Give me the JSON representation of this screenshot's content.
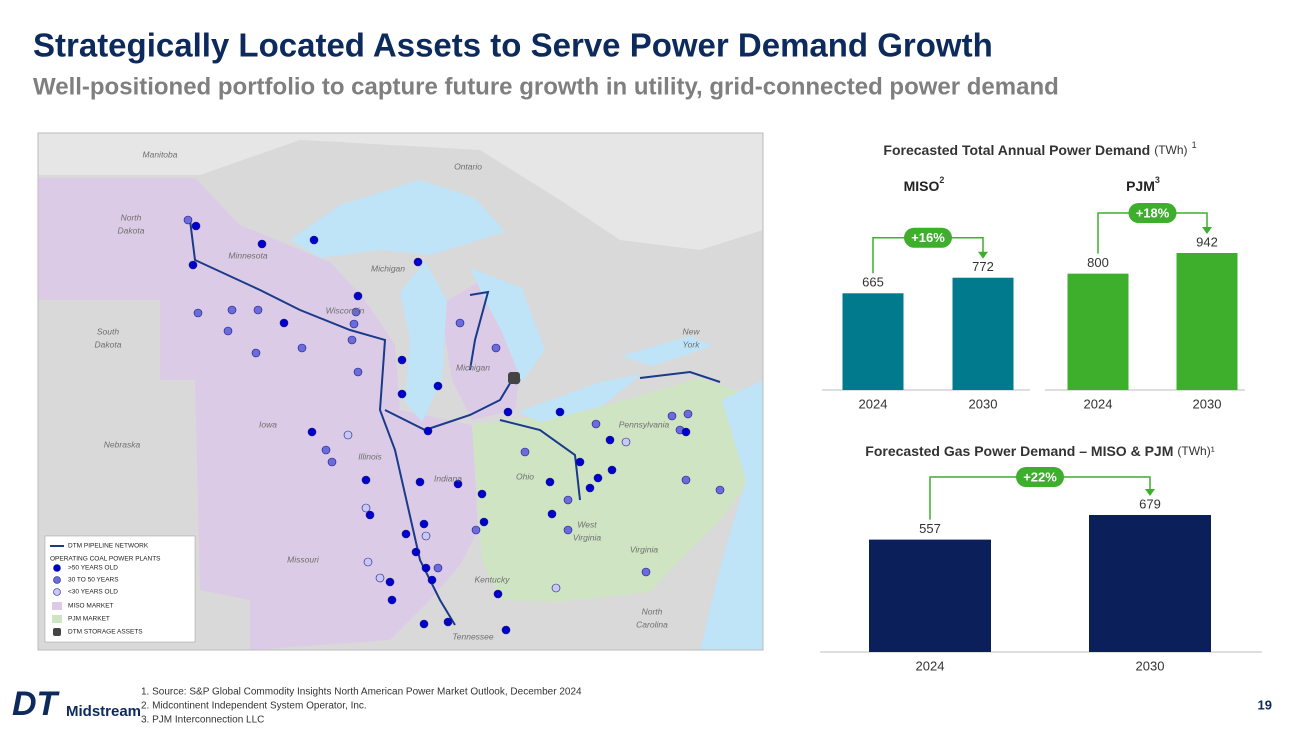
{
  "header": {
    "title": "Strategically Located Assets to Serve Power Demand Growth",
    "subtitle": "Well-positioned portfolio to capture future growth in utility, grid-connected power demand"
  },
  "map": {
    "labels": [
      [
        "Manitoba"
      ],
      [
        "Ontario"
      ],
      [
        "North",
        "Dakota"
      ],
      [
        "Minnesota"
      ],
      [
        "Michigan"
      ],
      [
        "Wisconsin"
      ],
      [
        "South",
        "Dakota"
      ],
      [
        "New",
        "York"
      ],
      [
        "Michigan"
      ],
      [
        "Iowa"
      ],
      [
        "Pennsylvania"
      ],
      [
        "Nebraska"
      ],
      [
        "Illinois"
      ],
      [
        "Ohio"
      ],
      [
        "Indiana"
      ],
      [
        "West",
        "Virginia"
      ],
      [
        "Missouri"
      ],
      [
        "Virginia"
      ],
      [
        "Kentucky"
      ],
      [
        "North",
        "Carolina"
      ],
      [
        "Tennessee"
      ]
    ],
    "legend": [
      "DTM PIPELINE NETWORK",
      "OPERATING COAL POWER PLANTS",
      ">50 YEARS OLD",
      "30 TO 50 YEARS",
      "<30 YEARS OLD",
      "MISO MARKET",
      "PJM MARKET",
      "DTM STORAGE ASSETS"
    ]
  },
  "charts": [
    {
      "type": "bar",
      "title": "Forecasted Total Annual Power Demand",
      "unit": "(TWh)",
      "note": "1",
      "panels": [
        {
          "name": "MISO",
          "sup": "2",
          "color": "#007a8c",
          "categories": [
            "2024",
            "2030"
          ],
          "values": [
            665,
            772
          ],
          "change": "+16%"
        },
        {
          "name": "PJM",
          "sup": "3",
          "color": "#3daf2c",
          "categories": [
            "2024",
            "2030"
          ],
          "values": [
            800,
            942
          ],
          "change": "+18%"
        }
      ]
    },
    {
      "type": "bar",
      "title": "Forecasted Gas Power Demand – MISO & PJM",
      "unit": "(TWh)¹",
      "color": "#0b1f5a",
      "categories": [
        "2024",
        "2030"
      ],
      "values": [
        557,
        679
      ],
      "change": "+22%"
    }
  ],
  "footnotes": [
    "1.   Source: S&P Global Commodity Insights North American Power Market Outlook, December 2024",
    "2.   Midcontinent Independent System Operator, Inc.",
    "3.   PJM Interconnection LLC"
  ],
  "logo": {
    "mark": "DT",
    "name": "Midstream"
  },
  "page_number": "19"
}
